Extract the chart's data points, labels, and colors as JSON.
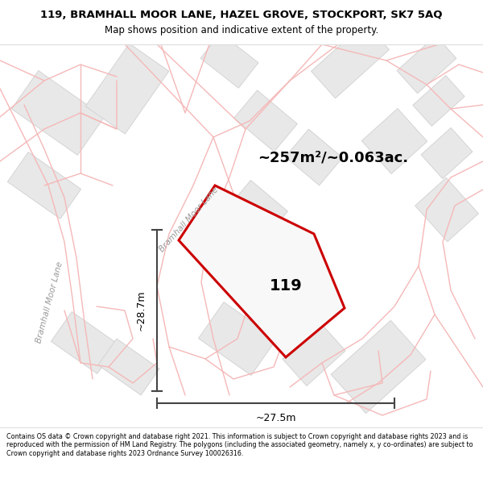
{
  "title_line1": "119, BRAMHALL MOOR LANE, HAZEL GROVE, STOCKPORT, SK7 5AQ",
  "title_line2": "Map shows position and indicative extent of the property.",
  "footer_text": "Contains OS data © Crown copyright and database right 2021. This information is subject to Crown copyright and database rights 2023 and is reproduced with the permission of HM Land Registry. The polygons (including the associated geometry, namely x, y co-ordinates) are subject to Crown copyright and database rights 2023 Ordnance Survey 100026316.",
  "area_label": "~257m²/~0.063ac.",
  "number_label": "119",
  "dim_width": "~27.5m",
  "dim_height": "~28.7m",
  "road_label_upper": "Bramhall Moor Lane",
  "road_label_lower": "Bramhall Moor Lane",
  "map_bg": "#fafafa",
  "building_fill": "#e8e8e8",
  "building_edge": "#d0d0d0",
  "road_line_color": "#f5b8b8",
  "dim_line_color": "#444444",
  "main_poly_edge": "#cc0000",
  "main_poly_fill": "#f8f8f8",
  "title_bg": "#ffffff",
  "footer_bg": "#ffffff"
}
